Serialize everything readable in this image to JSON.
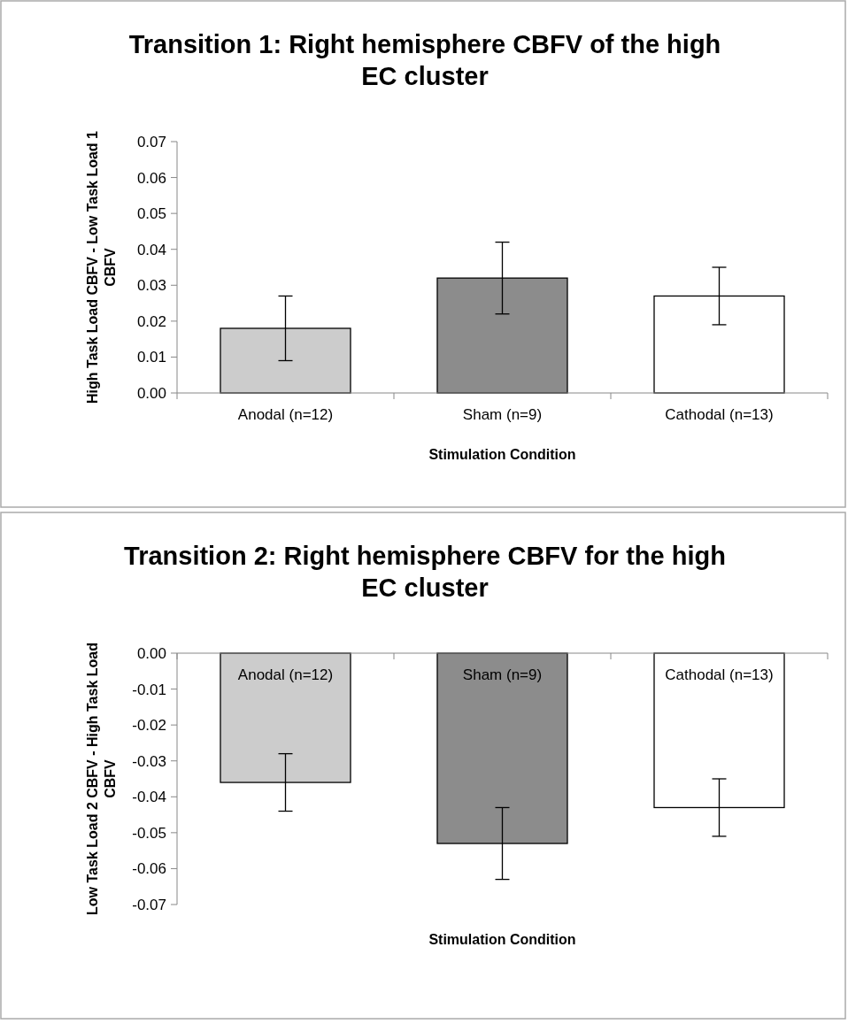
{
  "chart_data": [
    {
      "type": "bar",
      "title": "Transition 1: Right hemisphere CBFV of the high EC cluster",
      "xlabel": "Stimulation Condition",
      "ylabel": "High Task Load CBFV  - Low Task Load 1 CBFV",
      "categories": [
        "Anodal (n=12)",
        "Sham (n=9)",
        "Cathodal (n=13)"
      ],
      "values": [
        0.018,
        0.032,
        0.027
      ],
      "colors": [
        "#cccccc",
        "#8c8c8c",
        "#ffffff"
      ],
      "errors": [
        0.009,
        0.01,
        0.008
      ],
      "ylim": [
        0,
        0.07
      ],
      "yticks": [
        {
          "value": 0,
          "label": "0.00"
        },
        0.01,
        0.02,
        0.03,
        0.04,
        0.05,
        0.06,
        0.07
      ],
      "grid": false
    },
    {
      "type": "bar",
      "title": "Transition 2: Right hemisphere CBFV for the high EC cluster",
      "xlabel": "Stimulation Condition",
      "ylabel": "Low Task Load 2 CBFV - High Task Load CBFV",
      "categories": [
        "Anodal (n=12)",
        "Sham (n=9)",
        "Cathodal (n=13)"
      ],
      "values": [
        -0.036,
        -0.053,
        -0.043
      ],
      "colors": [
        "#cccccc",
        "#8c8c8c",
        "#ffffff"
      ],
      "errors": [
        0.008,
        0.01,
        0.008
      ],
      "ylim": [
        -0.07,
        0
      ],
      "yticks": [
        {
          "value": 0,
          "label": "0.00"
        },
        -0.01,
        -0.02,
        -0.03,
        -0.04,
        -0.05,
        -0.06,
        -0.07
      ],
      "grid": false
    }
  ]
}
